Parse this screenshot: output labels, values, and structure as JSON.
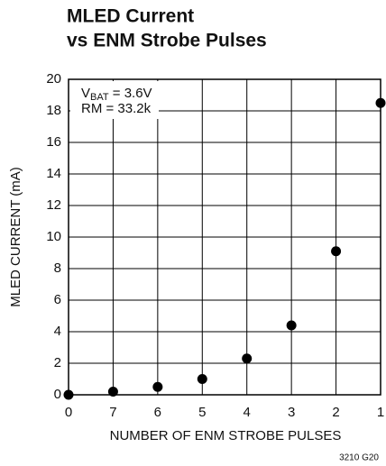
{
  "chart_data": {
    "type": "scatter",
    "title": [
      "MLED Current",
      "vs ENM Strobe Pulses"
    ],
    "categories": [
      "0",
      "7",
      "6",
      "5",
      "4",
      "3",
      "2",
      "1"
    ],
    "values": [
      0,
      0.2,
      0.5,
      1.0,
      2.3,
      4.4,
      9.1,
      18.5
    ],
    "color": "#000000",
    "xlabel": "NUMBER OF ENM STROBE PULSES",
    "ylabel": "MLED CURRENT (mA)",
    "ylim": [
      0,
      20
    ],
    "yticks": [
      0,
      2,
      4,
      6,
      8,
      10,
      12,
      14,
      16,
      18,
      20
    ],
    "grid": true,
    "annotations": [
      [
        "V",
        "BAT",
        " = 3.6V"
      ],
      [
        "RM = 33.2k"
      ]
    ],
    "figure_code": "3210 G20"
  }
}
